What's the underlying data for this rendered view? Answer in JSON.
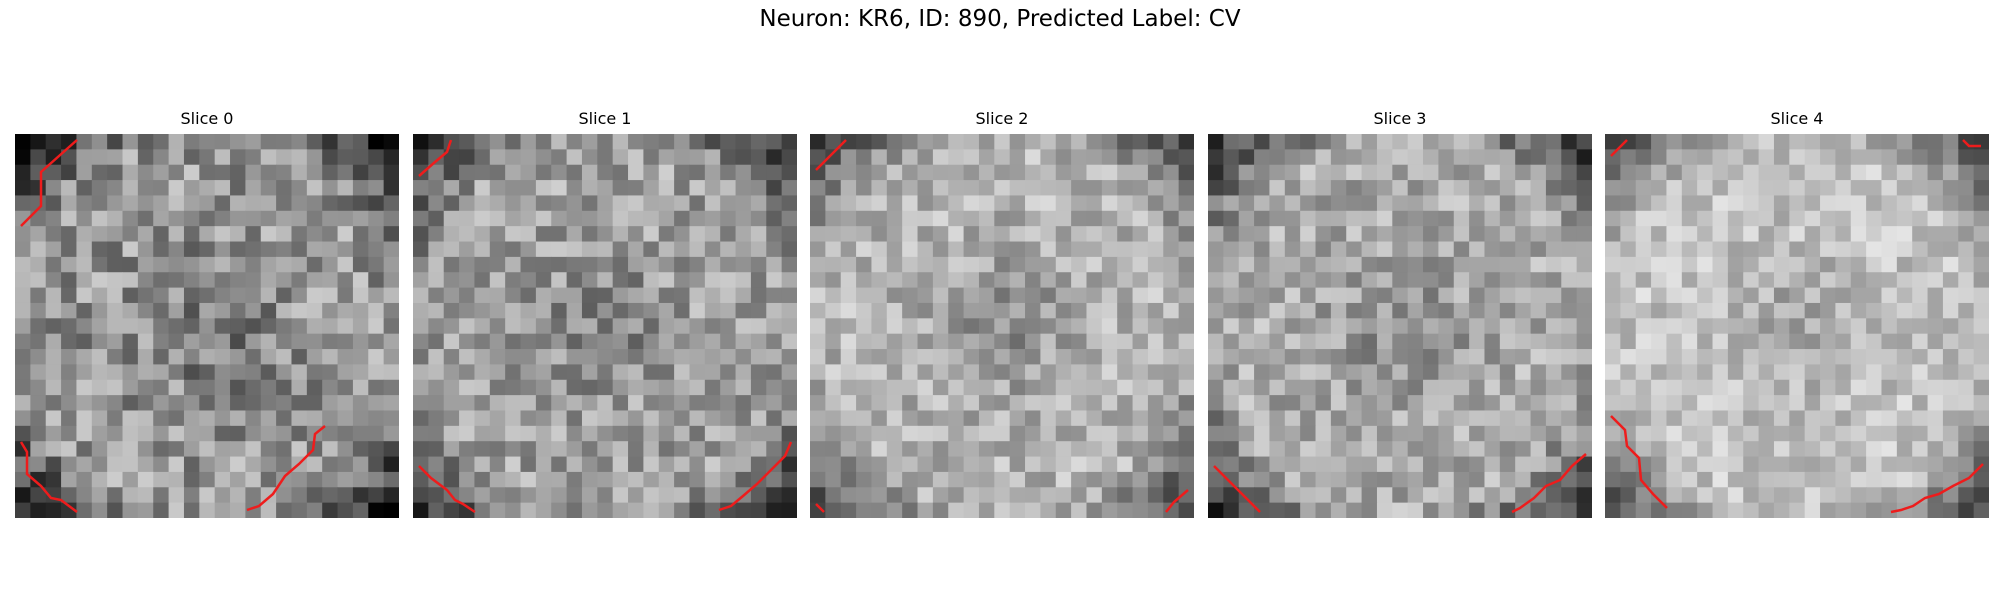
{
  "title": "Neuron: KR6, ID: 890, Predicted Label: CV",
  "slices": [
    {
      "label": "Slice 0",
      "seed": 11,
      "base": 150,
      "spread": 110,
      "blob": 0.35
    },
    {
      "label": "Slice 1",
      "seed": 23,
      "base": 160,
      "spread": 95,
      "blob": 0.3
    },
    {
      "label": "Slice 2",
      "seed": 37,
      "base": 180,
      "spread": 80,
      "blob": 0.45
    },
    {
      "label": "Slice 3",
      "seed": 41,
      "base": 170,
      "spread": 85,
      "blob": 0.3
    },
    {
      "label": "Slice 4",
      "seed": 53,
      "base": 195,
      "spread": 70,
      "blob": 0.35
    }
  ],
  "outline_color": "#ee1c1c"
}
